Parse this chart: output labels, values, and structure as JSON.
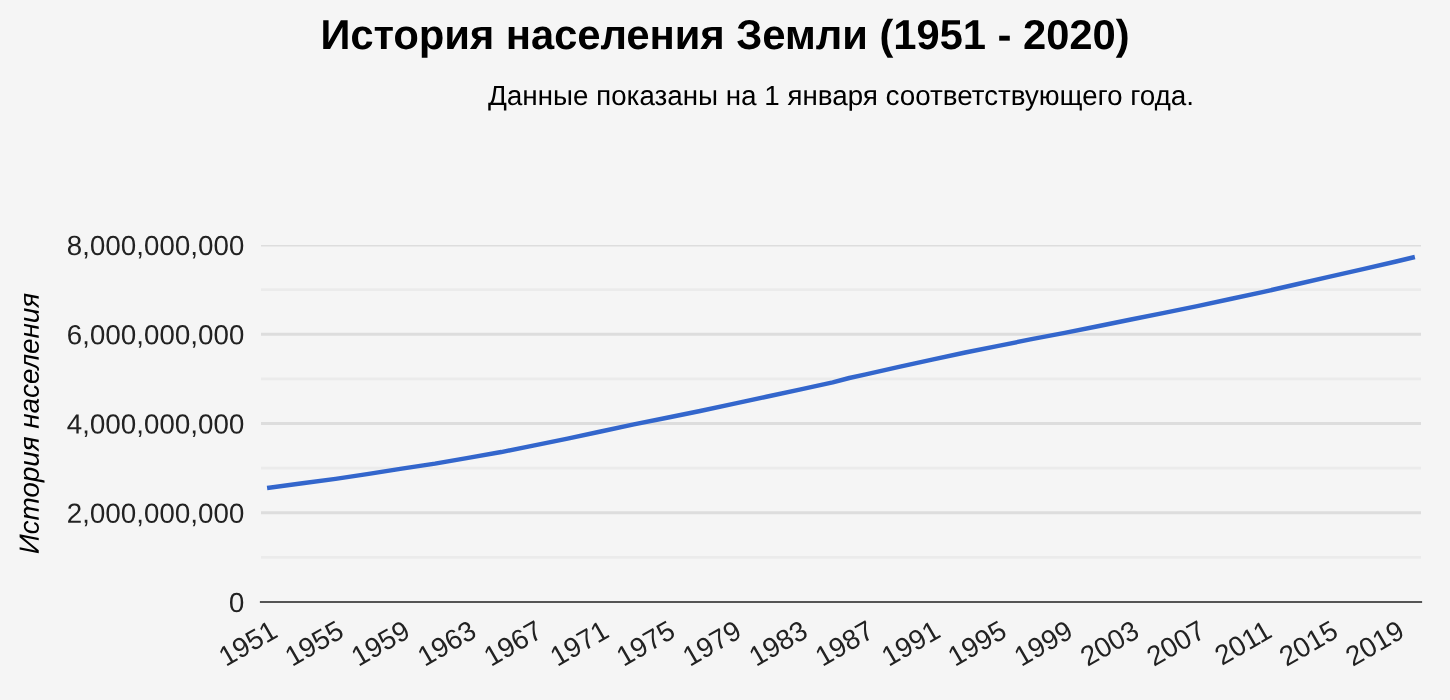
{
  "chart_data": {
    "type": "line",
    "title": "История населения Земли (1951 - 2020)",
    "subtitle": "Данные показаны на 1 января соответствующего года.",
    "ylabel": "История населения",
    "series": [
      {
        "color": "#3366cc",
        "x": [
          1951,
          1953,
          1955,
          1957,
          1959,
          1961,
          1963,
          1965,
          1967,
          1969,
          1971,
          1973,
          1975,
          1977,
          1979,
          1981,
          1983,
          1985,
          1986,
          1987,
          1989,
          1991,
          1993,
          1995,
          1997,
          1999,
          2001,
          2003,
          2005,
          2007,
          2009,
          2011,
          2013,
          2015,
          2017,
          2019,
          2020
        ],
        "values": [
          2560000000,
          2660000000,
          2760000000,
          2870000000,
          2990000000,
          3100000000,
          3230000000,
          3360000000,
          3510000000,
          3660000000,
          3820000000,
          3980000000,
          4130000000,
          4280000000,
          4440000000,
          4600000000,
          4760000000,
          4920000000,
          5020000000,
          5100000000,
          5270000000,
          5430000000,
          5590000000,
          5740000000,
          5890000000,
          6030000000,
          6180000000,
          6330000000,
          6480000000,
          6630000000,
          6790000000,
          6950000000,
          7120000000,
          7290000000,
          7460000000,
          7630000000,
          7720000000
        ]
      }
    ],
    "xlim": [
      1950.5,
      2020.5
    ],
    "xticks": [
      1951,
      1955,
      1959,
      1963,
      1967,
      1971,
      1975,
      1979,
      1983,
      1987,
      1991,
      1995,
      1999,
      2003,
      2007,
      2011,
      2015,
      2019
    ],
    "ylim": [
      0,
      8000000000
    ],
    "yticks": [
      {
        "value": 0,
        "label": "0"
      },
      {
        "value": 1000000000,
        "label": null
      },
      {
        "value": 2000000000,
        "label": "2,000,000,000"
      },
      {
        "value": 3000000000,
        "label": null
      },
      {
        "value": 4000000000,
        "label": "4,000,000,000"
      },
      {
        "value": 5000000000,
        "label": null
      },
      {
        "value": 6000000000,
        "label": "6,000,000,000"
      },
      {
        "value": 7000000000,
        "label": null
      },
      {
        "value": 8000000000,
        "label": "8,000,000,000"
      }
    ],
    "grid": "y",
    "line_style": "solid"
  }
}
